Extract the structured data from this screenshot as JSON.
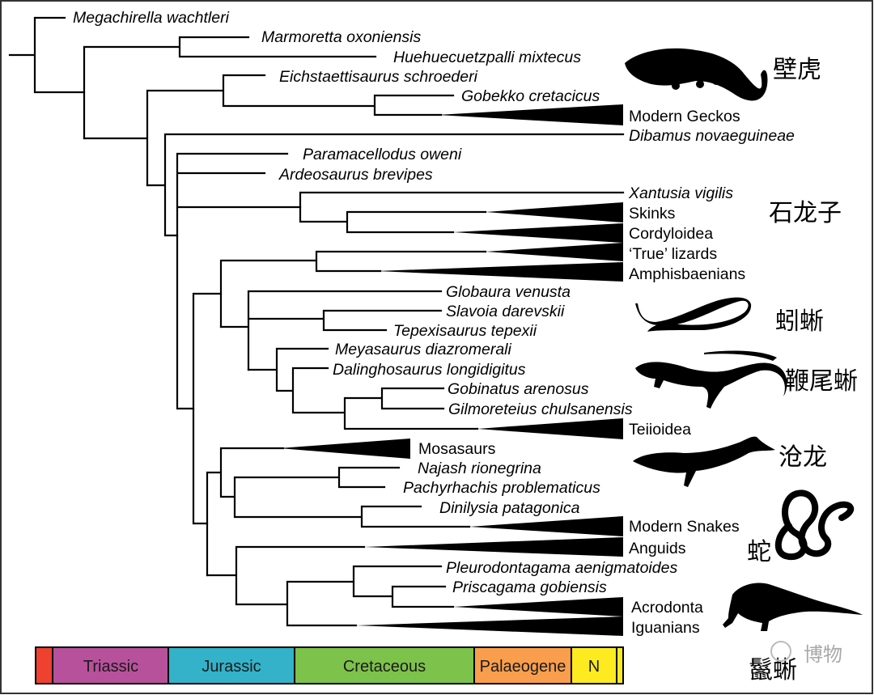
{
  "tips": {
    "megachirella": "Megachirella wachtleri",
    "marmoretta": "Marmoretta oxoniensis",
    "huehuecuetzpalli": "Huehuecuetzpalli mixtecus",
    "eichstaettisaurus": "Eichstaettisaurus schroederi",
    "gobekko": "Gobekko cretacicus",
    "dibamus": "Dibamus novaeguineae",
    "paramacellodus": "Paramacellodus oweni",
    "ardeosaurus": "Ardeosaurus brevipes",
    "xantusia": "Xantusia vigilis",
    "globaura": "Globaura venusta",
    "slavoia": "Slavoia darevskii",
    "tepexisaurus": "Tepexisaurus tepexii",
    "meyasaurus": "Meyasaurus diazromerali",
    "dalinghosaurus": "Dalinghosaurus longidigitus",
    "gobinatus": "Gobinatus arenosus",
    "gilmoreteius": "Gilmoreteius chulsanensis",
    "najash": "Najash rionegrina",
    "pachyrhachis": "Pachyrhachis problematicus",
    "dinilysia": "Dinilysia patagonica",
    "pleurodontagama": "Pleurodontagama aenigmatoides",
    "priscagama": "Priscagama gobiensis"
  },
  "clades": {
    "modern_geckos": "Modern Geckos",
    "skinks": "Skinks",
    "cordyloidea": "Cordyloidea",
    "true_lizards": "‘True’ lizards",
    "amphisbaenians": "Amphisbaenians",
    "teiioidea": "Teiioidea",
    "mosasaurs": "Mosasaurs",
    "modern_snakes": "Modern Snakes",
    "anguids": "Anguids",
    "acrodonta": "Acrodonta",
    "iguanians": "Iguanians"
  },
  "chinese_labels": {
    "gecko": "壁虎",
    "skink": "石龙子",
    "amphisbaenian": "蚓蜥",
    "whiptail": "鞭尾蜥",
    "mosasaur": "沧龙",
    "snake": "蛇",
    "iguana": "鬣蜥"
  },
  "timescale": {
    "periods": [
      "",
      "Triassic",
      "Jurassic",
      "Cretaceous",
      "Palaeogene",
      "N"
    ],
    "colors": [
      "#ef4130",
      "#b8519c",
      "#33b2c9",
      "#7dc24b",
      "#f99e4c",
      "#fdea21"
    ]
  },
  "watermark": "博物"
}
